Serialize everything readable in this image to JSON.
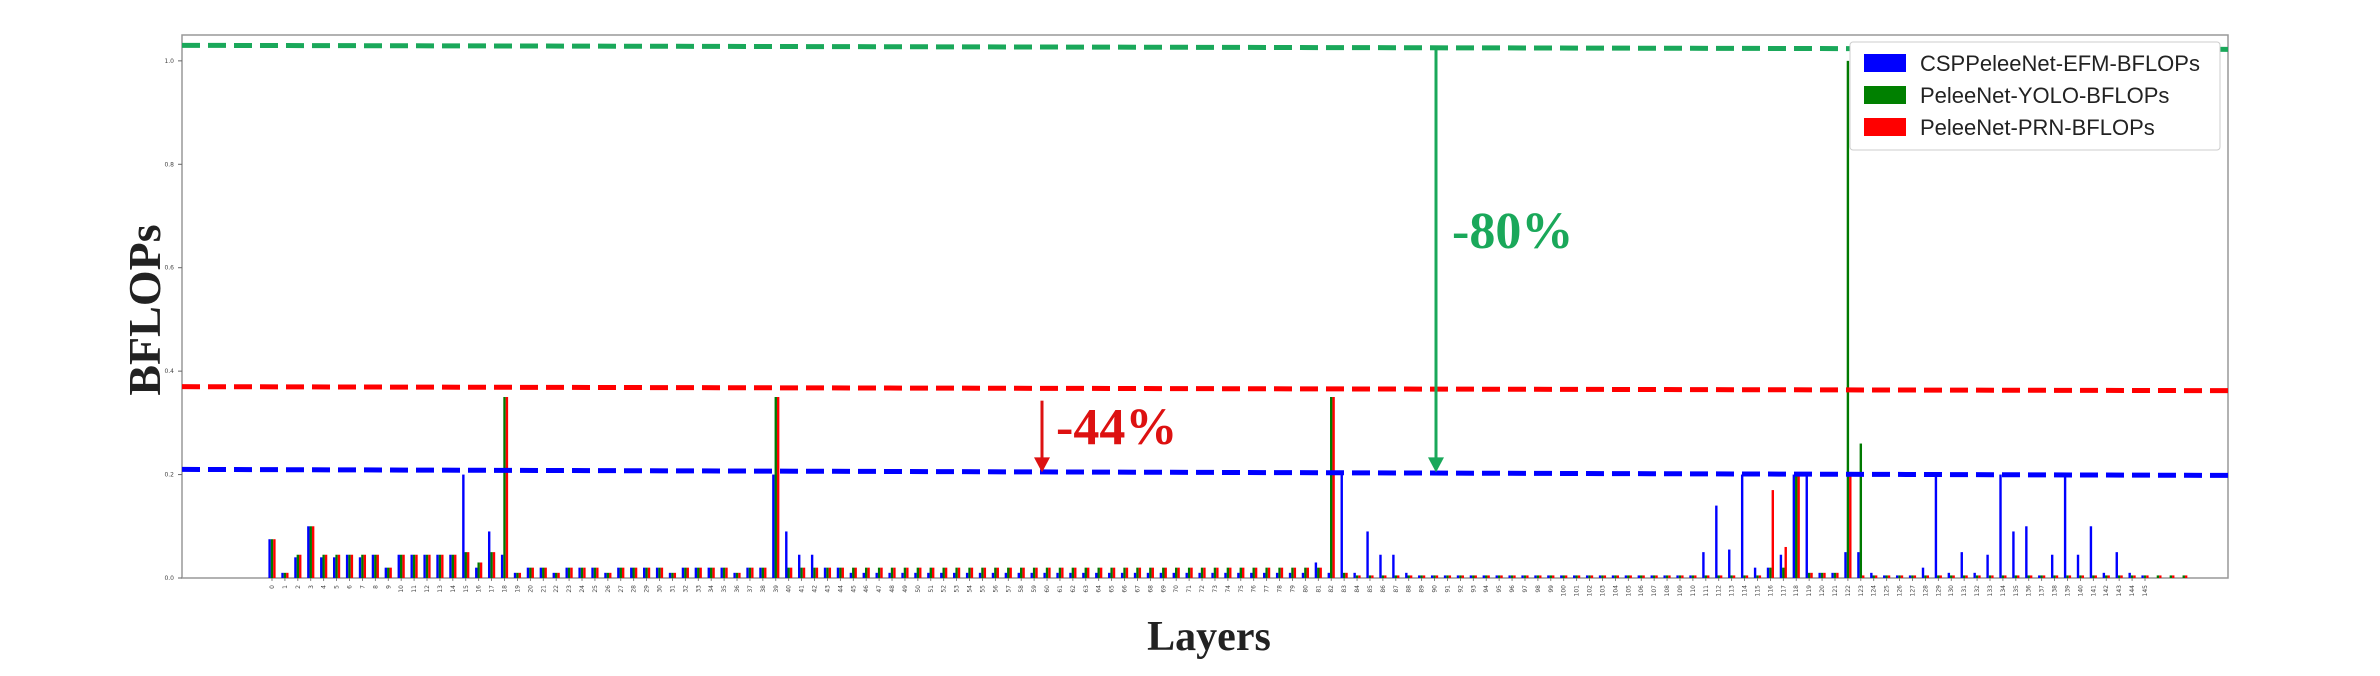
{
  "chart_data": {
    "type": "bar",
    "xlabel": "Layers",
    "ylabel": "BFLOPs",
    "ylim": [
      0,
      1.05
    ],
    "ytick_labels": [
      "0.0",
      "0.2",
      "0.4",
      "0.6",
      "0.8",
      "1.0"
    ],
    "yticks": [
      0,
      0.2,
      0.4,
      0.6,
      0.8,
      1.0
    ],
    "legend_position": "top-right",
    "grid": false,
    "series": [
      {
        "name": "CSPPeleeNet-EFM-BFLOPs",
        "color": "#0000ff",
        "values": [
          0.075,
          0.01,
          0.04,
          0.1,
          0.04,
          0.04,
          0.045,
          0.04,
          0.045,
          0.02,
          0.045,
          0.045,
          0.045,
          0.045,
          0.045,
          0.2,
          0.02,
          0.09,
          0.045,
          0.01,
          0.02,
          0.02,
          0.01,
          0.02,
          0.02,
          0.02,
          0.01,
          0.02,
          0.02,
          0.02,
          0.02,
          0.01,
          0.02,
          0.02,
          0.02,
          0.02,
          0.01,
          0.02,
          0.02,
          0.2,
          0.09,
          0.045,
          0.045,
          0.02,
          0.02,
          0.01,
          0.01,
          0.01,
          0.01,
          0.01,
          0.01,
          0.01,
          0.01,
          0.01,
          0.01,
          0.01,
          0.01,
          0.01,
          0.01,
          0.01,
          0.01,
          0.01,
          0.01,
          0.01,
          0.01,
          0.01,
          0.01,
          0.01,
          0.01,
          0.01,
          0.01,
          0.01,
          0.01,
          0.01,
          0.01,
          0.01,
          0.01,
          0.01,
          0.01,
          0.01,
          0.01,
          0.03,
          0.01,
          0.2,
          0.01,
          0.09,
          0.045,
          0.045,
          0.01,
          0.005,
          0.005,
          0.005,
          0.005,
          0.005,
          0.005,
          0.005,
          0.005,
          0.005,
          0.005,
          0.005,
          0.005,
          0.005,
          0.005,
          0.005,
          0.005,
          0.005,
          0.005,
          0.005,
          0.005,
          0.005,
          0.005,
          0.05,
          0.14,
          0.055,
          0.2,
          0.02,
          0.02,
          0.045,
          0.2,
          0.2,
          0.01,
          0.01,
          0.05,
          0.05,
          0.01,
          0.005,
          0.005,
          0.005,
          0.02,
          0.2,
          0.01,
          0.05,
          0.01,
          0.045,
          0.2,
          0.09,
          0.1,
          0.005,
          0.045,
          0.2,
          0.045,
          0.1,
          0.01,
          0.05,
          0.01,
          0.005
        ],
        "reference_line": 0.21
      },
      {
        "name": "PeleeNet-YOLO-BFLOPs",
        "color": "#007a00",
        "values": [
          0.075,
          0.01,
          0.045,
          0.1,
          0.045,
          0.045,
          0.045,
          0.045,
          0.045,
          0.02,
          0.045,
          0.045,
          0.045,
          0.045,
          0.045,
          0.05,
          0.03,
          0.05,
          0.35,
          0.01,
          0.02,
          0.02,
          0.01,
          0.02,
          0.02,
          0.02,
          0.01,
          0.02,
          0.02,
          0.02,
          0.02,
          0.01,
          0.02,
          0.02,
          0.02,
          0.02,
          0.01,
          0.02,
          0.02,
          0.35,
          0.02,
          0.02,
          0.02,
          0.02,
          0.02,
          0.02,
          0.02,
          0.02,
          0.02,
          0.02,
          0.02,
          0.02,
          0.02,
          0.02,
          0.02,
          0.02,
          0.02,
          0.02,
          0.02,
          0.02,
          0.02,
          0.02,
          0.02,
          0.02,
          0.02,
          0.02,
          0.02,
          0.02,
          0.02,
          0.02,
          0.02,
          0.02,
          0.02,
          0.02,
          0.02,
          0.02,
          0.02,
          0.02,
          0.02,
          0.02,
          0.02,
          0.02,
          0.35,
          0.01,
          0.005,
          0.005,
          0.005,
          0.005,
          0.005,
          0.005,
          0.005,
          0.005,
          0.005,
          0.005,
          0.005,
          0.005,
          0.005,
          0.005,
          0.005,
          0.005,
          0.005,
          0.005,
          0.005,
          0.005,
          0.005,
          0.005,
          0.005,
          0.005,
          0.005,
          0.005,
          0.005,
          0.005,
          0.005,
          0.005,
          0.005,
          0.005,
          0.02,
          0.02,
          0.2,
          0.01,
          0.01,
          0.01,
          1.0,
          0.26,
          0.005,
          0.005,
          0.005,
          0.005,
          0.005,
          0.005,
          0.005,
          0.005,
          0.005,
          0.005,
          0.005,
          0.005,
          0.005,
          0.005,
          0.005,
          0.005,
          0.005,
          0.005,
          0.005,
          0.005,
          0.005,
          0.005,
          0.005,
          0.005,
          0.005
        ],
        "reference_line": 1.03
      },
      {
        "name": "PeleeNet-PRN-BFLOPs",
        "color": "#ff0000",
        "values": [
          0.075,
          0.01,
          0.045,
          0.1,
          0.045,
          0.045,
          0.045,
          0.045,
          0.045,
          0.02,
          0.045,
          0.045,
          0.045,
          0.045,
          0.045,
          0.05,
          0.03,
          0.05,
          0.35,
          0.01,
          0.02,
          0.02,
          0.01,
          0.02,
          0.02,
          0.02,
          0.01,
          0.02,
          0.02,
          0.02,
          0.02,
          0.01,
          0.02,
          0.02,
          0.02,
          0.02,
          0.01,
          0.02,
          0.02,
          0.35,
          0.02,
          0.02,
          0.02,
          0.02,
          0.02,
          0.02,
          0.02,
          0.02,
          0.02,
          0.02,
          0.02,
          0.02,
          0.02,
          0.02,
          0.02,
          0.02,
          0.02,
          0.02,
          0.02,
          0.02,
          0.02,
          0.02,
          0.02,
          0.02,
          0.02,
          0.02,
          0.02,
          0.02,
          0.02,
          0.02,
          0.02,
          0.02,
          0.02,
          0.02,
          0.02,
          0.02,
          0.02,
          0.02,
          0.02,
          0.02,
          0.02,
          0.02,
          0.35,
          0.01,
          0.005,
          0.005,
          0.005,
          0.005,
          0.005,
          0.005,
          0.005,
          0.005,
          0.005,
          0.005,
          0.005,
          0.005,
          0.005,
          0.005,
          0.005,
          0.005,
          0.005,
          0.005,
          0.005,
          0.005,
          0.005,
          0.005,
          0.005,
          0.005,
          0.005,
          0.005,
          0.005,
          0.005,
          0.005,
          0.005,
          0.005,
          0.005,
          0.17,
          0.06,
          0.2,
          0.01,
          0.01,
          0.01,
          0.2,
          0.005,
          0.005,
          0.005,
          0.005,
          0.005,
          0.005,
          0.005,
          0.005,
          0.005,
          0.005,
          0.005,
          0.005,
          0.005,
          0.005,
          0.005,
          0.005,
          0.005,
          0.005,
          0.005,
          0.005,
          0.005,
          0.005,
          0.005,
          0.005,
          0.005,
          0.005
        ],
        "reference_line": 0.37
      }
    ],
    "annotations": [
      {
        "text": "-80%",
        "color": "#1aa85a"
      },
      {
        "text": "-44%",
        "color": "#dd1111"
      }
    ]
  }
}
